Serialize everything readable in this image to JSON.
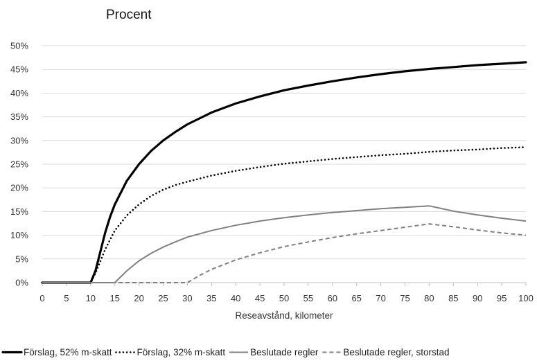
{
  "chart_data": {
    "type": "line",
    "title": "Procent",
    "xlabel": "Reseavstånd, kilometer",
    "ylabel": "",
    "xlim": [
      0,
      100
    ],
    "ylim": [
      0,
      50
    ],
    "x_ticks": [
      0,
      5,
      10,
      15,
      20,
      25,
      30,
      35,
      40,
      45,
      50,
      55,
      60,
      65,
      70,
      75,
      80,
      85,
      90,
      95,
      100
    ],
    "y_ticks": [
      {
        "value": 0,
        "label": "0%"
      },
      {
        "value": 5,
        "label": "5%"
      },
      {
        "value": 10,
        "label": "10%"
      },
      {
        "value": 15,
        "label": "15%"
      },
      {
        "value": 20,
        "label": "20%"
      },
      {
        "value": 25,
        "label": "25%"
      },
      {
        "value": 30,
        "label": "30%"
      },
      {
        "value": 35,
        "label": "35%"
      },
      {
        "value": 40,
        "label": "40%"
      },
      {
        "value": 45,
        "label": "45%"
      },
      {
        "value": 50,
        "label": "50%"
      }
    ],
    "grid": "horizontal",
    "legend_position": "bottom",
    "series": [
      {
        "name": "Förslag, 52% m-skatt",
        "color": "#000000",
        "style": "solid-thick",
        "points": [
          [
            0,
            0
          ],
          [
            10,
            0
          ],
          [
            11,
            2.5
          ],
          [
            12,
            6.5
          ],
          [
            13,
            10.5
          ],
          [
            14,
            13.8
          ],
          [
            15,
            16.5
          ],
          [
            17.5,
            21.5
          ],
          [
            20,
            25
          ],
          [
            22.5,
            27.8
          ],
          [
            25,
            30
          ],
          [
            27.5,
            31.8
          ],
          [
            30,
            33.4
          ],
          [
            35,
            35.9
          ],
          [
            40,
            37.8
          ],
          [
            45,
            39.3
          ],
          [
            50,
            40.6
          ],
          [
            55,
            41.6
          ],
          [
            60,
            42.5
          ],
          [
            65,
            43.3
          ],
          [
            70,
            44
          ],
          [
            75,
            44.6
          ],
          [
            80,
            45.1
          ],
          [
            85,
            45.5
          ],
          [
            90,
            45.9
          ],
          [
            95,
            46.2
          ],
          [
            100,
            46.5
          ]
        ]
      },
      {
        "name": "Förslag, 32% m-skatt",
        "color": "#000000",
        "style": "dotted",
        "points": [
          [
            0,
            0
          ],
          [
            10,
            0
          ],
          [
            11,
            2
          ],
          [
            12,
            4.5
          ],
          [
            13,
            7
          ],
          [
            14,
            9
          ],
          [
            15,
            11
          ],
          [
            17.5,
            14.2
          ],
          [
            20,
            16.5
          ],
          [
            22.5,
            18.3
          ],
          [
            25,
            19.6
          ],
          [
            27.5,
            20.6
          ],
          [
            30,
            21.3
          ],
          [
            35,
            22.6
          ],
          [
            40,
            23.6
          ],
          [
            45,
            24.4
          ],
          [
            50,
            25.1
          ],
          [
            55,
            25.6
          ],
          [
            60,
            26.1
          ],
          [
            65,
            26.5
          ],
          [
            70,
            26.9
          ],
          [
            75,
            27.2
          ],
          [
            80,
            27.6
          ],
          [
            85,
            27.9
          ],
          [
            90,
            28.1
          ],
          [
            95,
            28.4
          ],
          [
            100,
            28.6
          ]
        ]
      },
      {
        "name": "Beslutade regler",
        "color": "#808080",
        "style": "solid",
        "points": [
          [
            0,
            0
          ],
          [
            15,
            0
          ],
          [
            17.5,
            2.5
          ],
          [
            20,
            4.6
          ],
          [
            22.5,
            6.2
          ],
          [
            25,
            7.5
          ],
          [
            27.5,
            8.6
          ],
          [
            30,
            9.6
          ],
          [
            35,
            11
          ],
          [
            40,
            12.1
          ],
          [
            45,
            13
          ],
          [
            50,
            13.7
          ],
          [
            55,
            14.3
          ],
          [
            60,
            14.8
          ],
          [
            65,
            15.2
          ],
          [
            70,
            15.6
          ],
          [
            75,
            15.9
          ],
          [
            80,
            16.2
          ],
          [
            85,
            15.1
          ],
          [
            90,
            14.3
          ],
          [
            95,
            13.6
          ],
          [
            100,
            13
          ]
        ]
      },
      {
        "name": "Beslutade regler, storstad",
        "color": "#808080",
        "style": "dashed",
        "points": [
          [
            0,
            0
          ],
          [
            30,
            0
          ],
          [
            32.5,
            1.5
          ],
          [
            35,
            2.8
          ],
          [
            40,
            4.8
          ],
          [
            45,
            6.3
          ],
          [
            50,
            7.6
          ],
          [
            55,
            8.6
          ],
          [
            60,
            9.5
          ],
          [
            65,
            10.3
          ],
          [
            70,
            11
          ],
          [
            75,
            11.7
          ],
          [
            80,
            12.4
          ],
          [
            85,
            11.8
          ],
          [
            90,
            11.1
          ],
          [
            95,
            10.5
          ],
          [
            100,
            10
          ]
        ]
      }
    ]
  }
}
